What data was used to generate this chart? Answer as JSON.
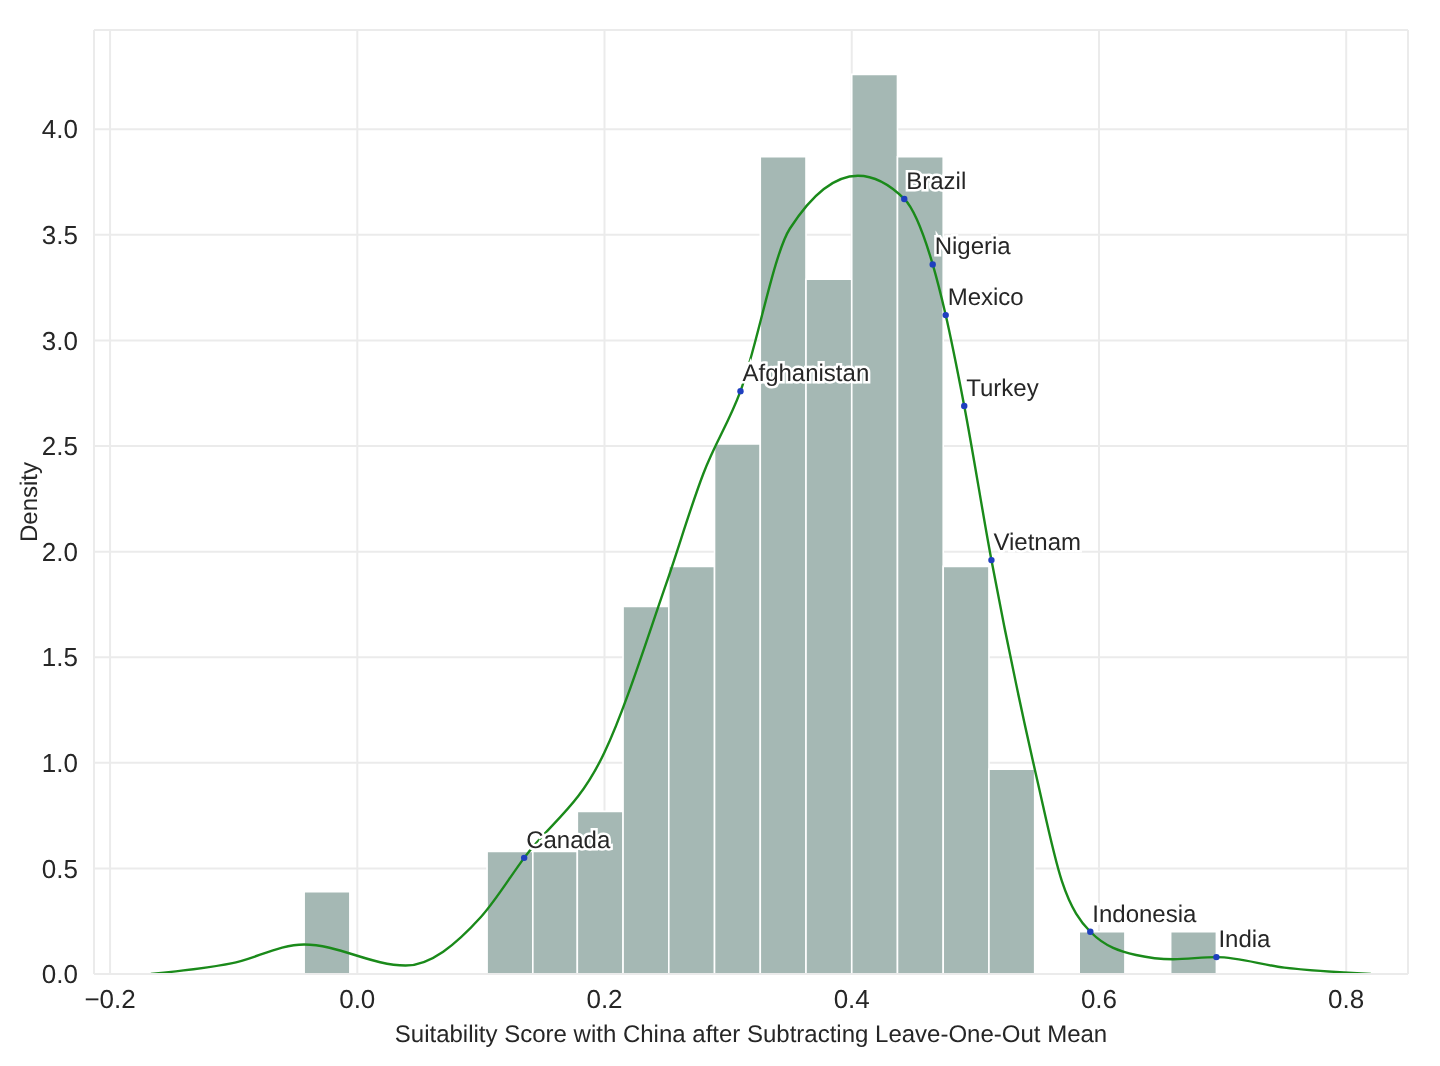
{
  "chart_data": {
    "type": "histogram",
    "xlabel": "Suitability Score with China after Subtracting Leave-One-Out Mean",
    "ylabel": "Density",
    "bins": [
      -0.043,
      -0.006,
      0.105,
      0.142,
      0.178,
      0.215,
      0.252,
      0.289,
      0.326,
      0.363,
      0.4,
      0.437,
      0.474,
      0.511,
      0.548,
      0.584,
      0.621,
      0.658,
      0.695
    ],
    "values": [
      0.39,
      0,
      0.58,
      0.58,
      0.77,
      1.74,
      1.93,
      2.51,
      3.87,
      3.29,
      4.26,
      3.87,
      1.93,
      0.97,
      0,
      0.2,
      0,
      0.2
    ],
    "color": "#a5b8b4",
    "series": [
      {
        "type": "line",
        "color": "#1a8a1a",
        "x": [
          -0.167,
          -0.102,
          -0.043,
          0.039,
          0.1,
          0.135,
          0.2,
          0.25,
          0.28,
          0.31,
          0.35,
          0.405,
          0.4425,
          0.4655,
          0.476,
          0.491,
          0.513,
          0.55,
          0.57,
          0.593,
          0.63,
          0.66,
          0.695,
          0.75,
          0.82
        ],
        "values": [
          0,
          0.05,
          0.14,
          0.04,
          0.27,
          0.55,
          1.05,
          1.85,
          2.37,
          2.76,
          3.53,
          3.78,
          3.67,
          3.36,
          3.12,
          2.69,
          1.96,
          0.92,
          0.44,
          0.2,
          0.09,
          0.07,
          0.08,
          0.03,
          0
        ]
      },
      {
        "type": "scatter",
        "color": "#1f3fbf",
        "marker": "circle",
        "x": [
          0.135,
          0.31,
          0.4425,
          0.4655,
          0.476,
          0.491,
          0.513,
          0.593,
          0.695
        ],
        "values": [
          0.55,
          2.76,
          3.67,
          3.36,
          3.12,
          2.69,
          1.96,
          0.2,
          0.08
        ]
      }
    ],
    "annotations": [
      {
        "text": "Canada",
        "x": 0.135,
        "y": 0.55
      },
      {
        "text": "Afghanistan",
        "x": 0.31,
        "y": 2.76
      },
      {
        "text": "Brazil",
        "x": 0.4425,
        "y": 3.67
      },
      {
        "text": "Nigeria",
        "x": 0.4655,
        "y": 3.36
      },
      {
        "text": "Mexico",
        "x": 0.476,
        "y": 3.12
      },
      {
        "text": "Turkey",
        "x": 0.491,
        "y": 2.69
      },
      {
        "text": "Vietnam",
        "x": 0.513,
        "y": 1.96
      },
      {
        "text": "Indonesia",
        "x": 0.593,
        "y": 0.2
      },
      {
        "text": "India",
        "x": 0.695,
        "y": 0.08
      }
    ],
    "xlim": [
      -0.213,
      0.85
    ],
    "ylim": [
      0,
      4.47
    ],
    "xticks": [
      {
        "value": -0.2,
        "label": "−0.2"
      },
      {
        "value": 0,
        "label": "0.0"
      },
      {
        "value": 0.2,
        "label": "0.2"
      },
      {
        "value": 0.4,
        "label": "0.4"
      },
      {
        "value": 0.6,
        "label": "0.6"
      },
      {
        "value": 0.8,
        "label": "0.8"
      }
    ],
    "yticks": [
      {
        "value": 0,
        "label": "0.0"
      },
      {
        "value": 0.5,
        "label": "0.5"
      },
      {
        "value": 1,
        "label": "1.0"
      },
      {
        "value": 1.5,
        "label": "1.5"
      },
      {
        "value": 2,
        "label": "2.0"
      },
      {
        "value": 2.5,
        "label": "2.5"
      },
      {
        "value": 3,
        "label": "3.0"
      },
      {
        "value": 3.5,
        "label": "3.5"
      },
      {
        "value": 4,
        "label": "4.0"
      }
    ],
    "grid": true
  }
}
